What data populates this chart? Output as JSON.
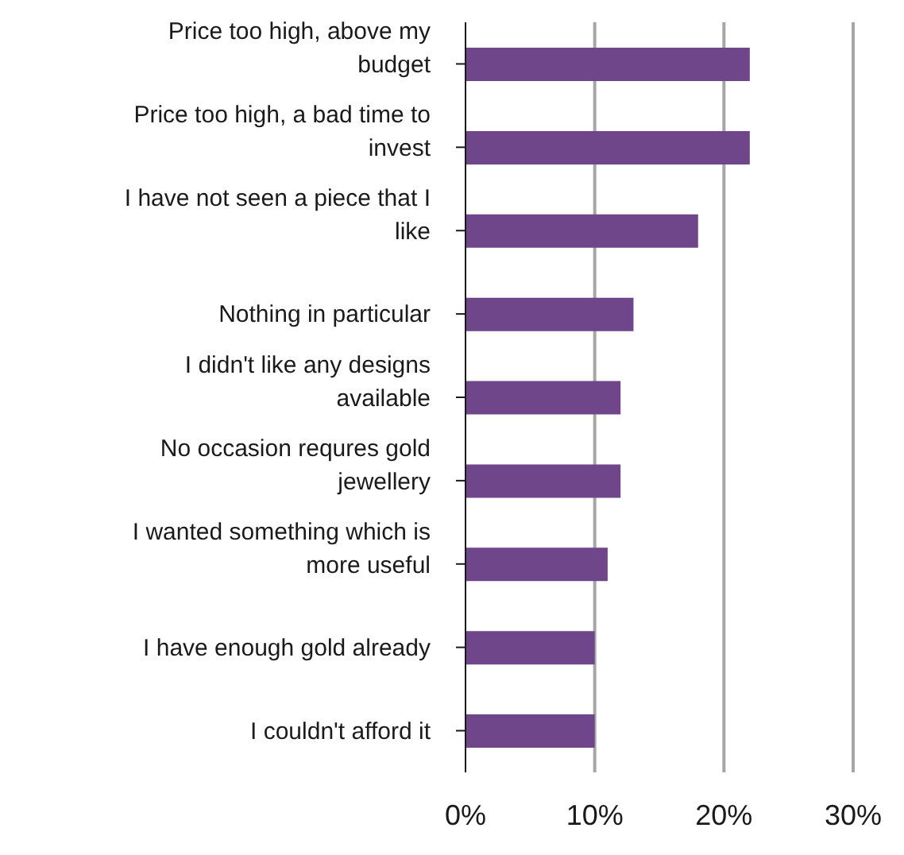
{
  "chart_data": {
    "type": "bar",
    "orientation": "horizontal",
    "categories": [
      "Price too high, above my budget",
      "Price too high, a bad time to invest",
      "I have not seen a piece that I like",
      "Nothing in particular",
      "I didn't like any designs available",
      "No occasion requres gold jewellery",
      "I wanted something which is more useful",
      "I have enough gold already",
      "I couldn't afford it"
    ],
    "values": [
      22,
      22,
      18,
      13,
      12,
      12,
      11,
      10,
      10
    ],
    "color": "#70468a",
    "xlim": [
      0,
      30
    ],
    "xticks": [
      {
        "value": 0,
        "label": "0%"
      },
      {
        "value": 10,
        "label": "10%"
      },
      {
        "value": 20,
        "label": "20%"
      },
      {
        "value": 30,
        "label": "30%"
      }
    ],
    "grid": "x",
    "legend": false
  }
}
